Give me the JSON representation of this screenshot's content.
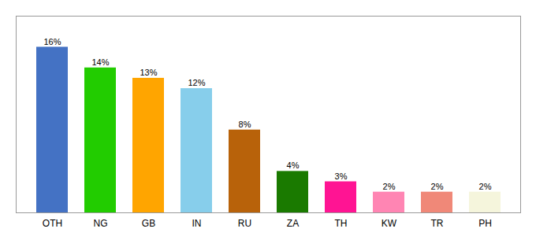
{
  "chart_data": {
    "type": "bar",
    "categories": [
      "OTH",
      "NG",
      "GB",
      "IN",
      "RU",
      "ZA",
      "TH",
      "KW",
      "TR",
      "PH"
    ],
    "values": [
      16,
      14,
      13,
      12,
      8,
      4,
      3,
      2,
      2,
      2
    ],
    "value_labels": [
      "16%",
      "14%",
      "13%",
      "12%",
      "8%",
      "4%",
      "3%",
      "2%",
      "2%",
      "2%"
    ],
    "colors": [
      "#4472C4",
      "#22CC00",
      "#FFA500",
      "#87CEEB",
      "#B8620A",
      "#1A7A00",
      "#FF1493",
      "#FF85B3",
      "#F08878",
      "#F5F5DC"
    ],
    "ylim": [
      0,
      19
    ],
    "data_labels": true,
    "tick_labels": "x",
    "grid": false
  }
}
